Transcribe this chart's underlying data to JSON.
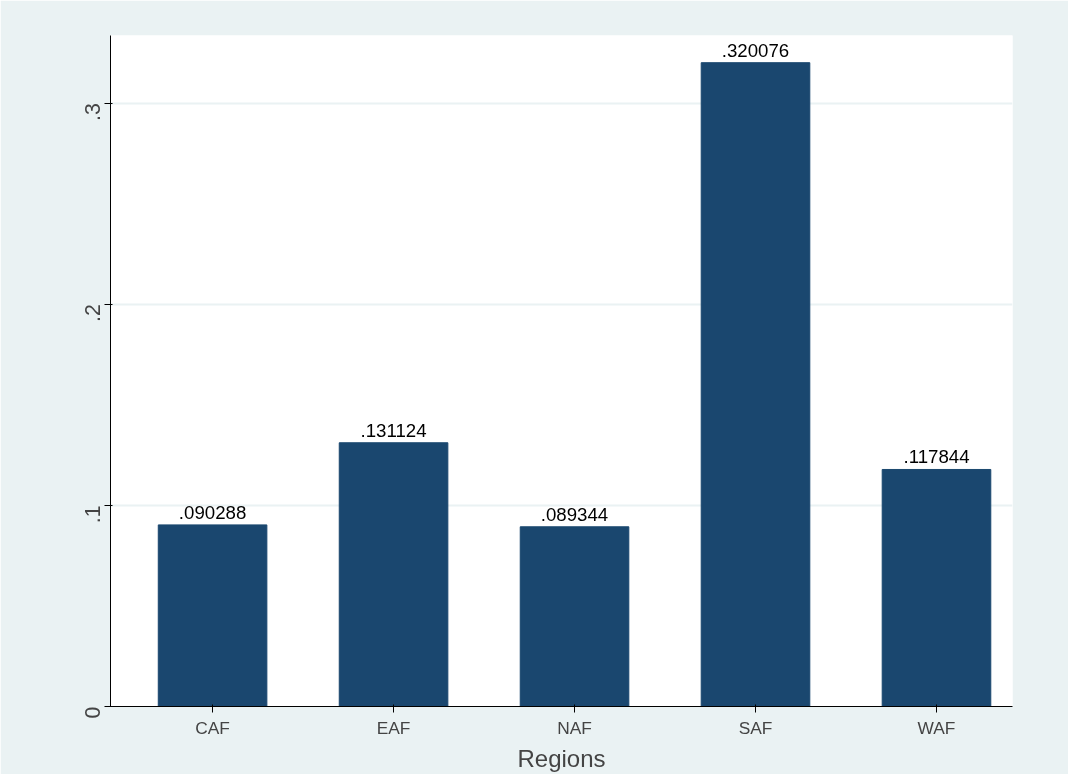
{
  "chart_data": {
    "type": "bar",
    "xlabel": "Regions",
    "categories": [
      "CAF",
      "EAF",
      "NAF",
      "SAF",
      "WAF"
    ],
    "values": [
      0.090288,
      0.131124,
      0.089344,
      0.320076,
      0.117844
    ],
    "value_labels": [
      ".090288",
      ".131124",
      ".089344",
      ".320076",
      ".117844"
    ],
    "color": "#1a476f",
    "ylim": [
      0,
      0.3336
    ],
    "yticks": [
      0,
      {
        "value": 0.1,
        "label": ".1"
      },
      {
        "value": 0.2,
        "label": ".2"
      },
      {
        "value": 0.3,
        "label": ".3"
      }
    ],
    "grid": "y"
  }
}
